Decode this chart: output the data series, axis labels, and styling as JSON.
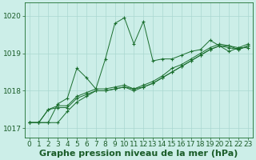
{
  "title": "Graphe pression niveau de la mer (hPa)",
  "xlabel": "Graphe pression niveau de la mer (hPa)",
  "xlim": [
    -0.5,
    23.5
  ],
  "ylim": [
    1016.75,
    1020.35
  ],
  "yticks": [
    1017,
    1018,
    1019,
    1020
  ],
  "xticks": [
    0,
    1,
    2,
    3,
    4,
    5,
    6,
    7,
    8,
    9,
    10,
    11,
    12,
    13,
    14,
    15,
    16,
    17,
    18,
    19,
    20,
    21,
    22,
    23
  ],
  "bg_color": "#cceee8",
  "grid_color": "#aad8d0",
  "line_color": "#1a6e2e",
  "series": [
    [
      1017.15,
      1017.15,
      1017.15,
      1017.65,
      1017.8,
      1018.6,
      1018.35,
      1018.05,
      1018.85,
      1019.8,
      1019.95,
      1019.25,
      1019.85,
      1018.8,
      1018.85,
      1018.85,
      1018.95,
      1019.05,
      1019.1,
      1019.35,
      1019.2,
      1019.05,
      1019.15,
      1019.15
    ],
    [
      1017.15,
      1017.15,
      1017.5,
      1017.55,
      1017.55,
      1017.8,
      1017.9,
      1018.0,
      1018.0,
      1018.05,
      1018.1,
      1018.0,
      1018.1,
      1018.2,
      1018.35,
      1018.5,
      1018.65,
      1018.8,
      1018.95,
      1019.1,
      1019.2,
      1019.15,
      1019.1,
      1019.2
    ],
    [
      1017.15,
      1017.15,
      1017.5,
      1017.6,
      1017.6,
      1017.85,
      1017.95,
      1018.05,
      1018.05,
      1018.1,
      1018.15,
      1018.05,
      1018.15,
      1018.25,
      1018.4,
      1018.6,
      1018.7,
      1018.85,
      1019.0,
      1019.15,
      1019.25,
      1019.2,
      1019.15,
      1019.25
    ],
    [
      1017.15,
      1017.15,
      1017.15,
      1017.15,
      1017.45,
      1017.7,
      1017.85,
      1018.0,
      1018.0,
      1018.05,
      1018.1,
      1018.05,
      1018.1,
      1018.2,
      1018.35,
      1018.5,
      1018.65,
      1018.8,
      1018.95,
      1019.1,
      1019.2,
      1019.2,
      1019.1,
      1019.2
    ]
  ],
  "font_color": "#1a5c28",
  "tick_fontsize": 6.5,
  "label_fontsize": 8
}
